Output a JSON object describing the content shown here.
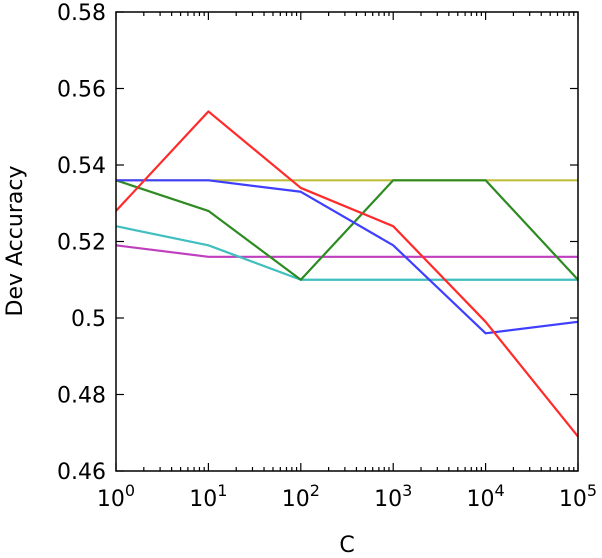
{
  "chart_data": {
    "type": "line",
    "xlabel": "C",
    "ylabel": "Dev Accuracy",
    "xscale": "log",
    "xlim": [
      1,
      100000
    ],
    "ylim": [
      0.46,
      0.58
    ],
    "grid": false,
    "x": [
      1,
      10,
      100,
      1000,
      10000,
      100000
    ],
    "x_tick_labels": [
      {
        "base": "10",
        "exp": "0"
      },
      {
        "base": "10",
        "exp": "1"
      },
      {
        "base": "10",
        "exp": "2"
      },
      {
        "base": "10",
        "exp": "3"
      },
      {
        "base": "10",
        "exp": "4"
      },
      {
        "base": "10",
        "exp": "5"
      }
    ],
    "y_ticks": [
      0.46,
      0.48,
      0.5,
      0.52,
      0.54,
      0.56,
      0.58
    ],
    "y_tick_labels": [
      "0.46",
      "0.48",
      "0.5",
      "0.52",
      "0.54",
      "0.56",
      "0.58"
    ],
    "series": [
      {
        "color": "#bfbf3f",
        "values": [
          0.536,
          0.536,
          0.536,
          0.536,
          0.536,
          0.536
        ]
      },
      {
        "color": "#bf3fbf",
        "values": [
          0.519,
          0.516,
          0.516,
          0.516,
          0.516,
          0.516
        ]
      },
      {
        "color": "#3fbfbf",
        "values": [
          0.524,
          0.519,
          0.51,
          0.51,
          0.51,
          0.51
        ]
      },
      {
        "color": "#2e8b22",
        "values": [
          0.536,
          0.528,
          0.51,
          0.536,
          0.536,
          0.51
        ]
      },
      {
        "color": "#3f3fff",
        "values": [
          0.536,
          0.536,
          0.533,
          0.519,
          0.496,
          0.499
        ]
      },
      {
        "color": "#ff2a2a",
        "values": [
          0.528,
          0.554,
          0.534,
          0.524,
          0.499,
          0.469
        ]
      }
    ]
  }
}
